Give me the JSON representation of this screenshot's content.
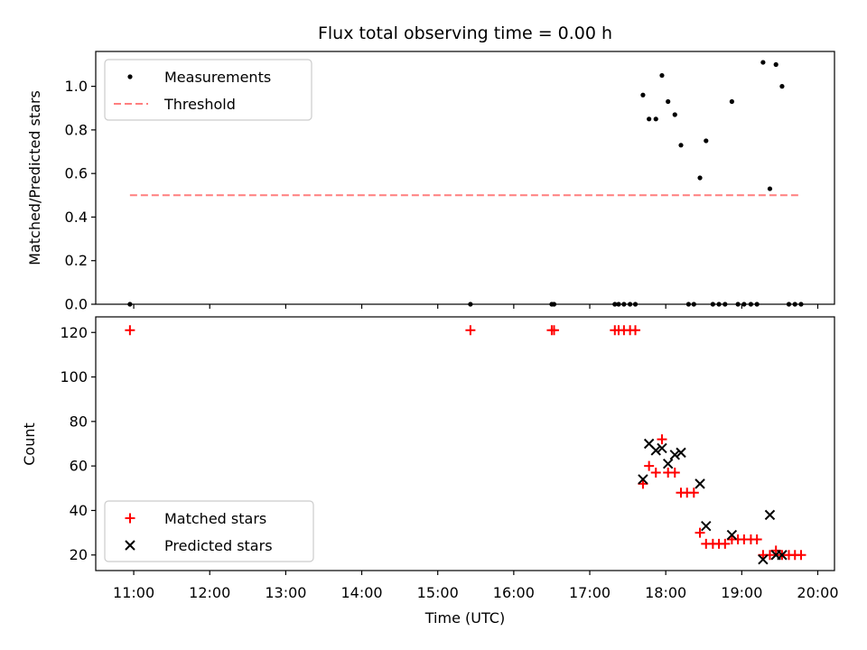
{
  "chart_data": [
    {
      "type": "scatter",
      "title": "Flux total observing time = 0.00 h",
      "xlabel": "",
      "ylabel": "Matched/Predicted stars",
      "xlim": [
        10.5,
        20.22
      ],
      "ylim": [
        0.0,
        1.16
      ],
      "yticks": [
        0.0,
        0.2,
        0.4,
        0.6,
        0.8,
        1.0
      ],
      "grid": false,
      "legend": "top-left",
      "series": [
        {
          "name": "Measurements",
          "marker": "dot",
          "color": "#000000",
          "points": [
            [
              10.95,
              0.0
            ],
            [
              15.43,
              0.0
            ],
            [
              16.5,
              0.0
            ],
            [
              16.53,
              0.0
            ],
            [
              17.33,
              0.0
            ],
            [
              17.38,
              0.0
            ],
            [
              17.45,
              0.0
            ],
            [
              17.53,
              0.0
            ],
            [
              17.6,
              0.0
            ],
            [
              17.7,
              0.96
            ],
            [
              17.78,
              0.85
            ],
            [
              17.87,
              0.85
            ],
            [
              17.95,
              1.05
            ],
            [
              18.03,
              0.93
            ],
            [
              18.12,
              0.87
            ],
            [
              18.2,
              0.73
            ],
            [
              18.3,
              0.0
            ],
            [
              18.37,
              0.0
            ],
            [
              18.45,
              0.58
            ],
            [
              18.53,
              0.75
            ],
            [
              18.62,
              0.0
            ],
            [
              18.7,
              0.0
            ],
            [
              18.78,
              0.0
            ],
            [
              18.87,
              0.93
            ],
            [
              18.95,
              0.0
            ],
            [
              19.03,
              0.0
            ],
            [
              19.12,
              0.0
            ],
            [
              19.2,
              0.0
            ],
            [
              19.28,
              1.11
            ],
            [
              19.37,
              0.53
            ],
            [
              19.45,
              1.1
            ],
            [
              19.53,
              1.0
            ],
            [
              19.62,
              0.0
            ],
            [
              19.7,
              0.0
            ],
            [
              19.78,
              0.0
            ]
          ]
        },
        {
          "name": "Threshold",
          "marker": "dashed-line",
          "color": "#ff7f7f",
          "points": [
            [
              10.95,
              0.5
            ],
            [
              19.78,
              0.5
            ]
          ]
        }
      ]
    },
    {
      "type": "scatter",
      "title": "",
      "xlabel": "Time (UTC)",
      "ylabel": "Count",
      "xlim": [
        10.5,
        20.22
      ],
      "ylim": [
        13,
        127
      ],
      "xticks": [
        11,
        12,
        13,
        14,
        15,
        16,
        17,
        18,
        19,
        20
      ],
      "xtick_labels": [
        "11:00",
        "12:00",
        "13:00",
        "14:00",
        "15:00",
        "16:00",
        "17:00",
        "18:00",
        "19:00",
        "20:00"
      ],
      "yticks": [
        20,
        40,
        60,
        80,
        100,
        120
      ],
      "grid": false,
      "legend": "bottom-left",
      "series": [
        {
          "name": "Matched stars",
          "marker": "plus",
          "color": "#ff0000",
          "points": [
            [
              10.95,
              121
            ],
            [
              15.43,
              121
            ],
            [
              16.5,
              121
            ],
            [
              16.53,
              121
            ],
            [
              17.33,
              121
            ],
            [
              17.38,
              121
            ],
            [
              17.45,
              121
            ],
            [
              17.53,
              121
            ],
            [
              17.6,
              121
            ],
            [
              17.7,
              52
            ],
            [
              17.78,
              60
            ],
            [
              17.87,
              57
            ],
            [
              17.95,
              72
            ],
            [
              18.03,
              57
            ],
            [
              18.12,
              57
            ],
            [
              18.2,
              48
            ],
            [
              18.28,
              48
            ],
            [
              18.37,
              48
            ],
            [
              18.45,
              30
            ],
            [
              18.53,
              25
            ],
            [
              18.62,
              25
            ],
            [
              18.7,
              25
            ],
            [
              18.78,
              25
            ],
            [
              18.87,
              27
            ],
            [
              18.95,
              27
            ],
            [
              19.03,
              27
            ],
            [
              19.12,
              27
            ],
            [
              19.2,
              27
            ],
            [
              19.28,
              20
            ],
            [
              19.37,
              20
            ],
            [
              19.45,
              22
            ],
            [
              19.53,
              20
            ],
            [
              19.62,
              20
            ],
            [
              19.7,
              20
            ],
            [
              19.78,
              20
            ]
          ]
        },
        {
          "name": "Predicted stars",
          "marker": "x",
          "color": "#000000",
          "points": [
            [
              17.7,
              54
            ],
            [
              17.78,
              70
            ],
            [
              17.87,
              67
            ],
            [
              17.95,
              68
            ],
            [
              18.03,
              61
            ],
            [
              18.12,
              65
            ],
            [
              18.2,
              66
            ],
            [
              18.45,
              52
            ],
            [
              18.53,
              33
            ],
            [
              18.87,
              29
            ],
            [
              19.28,
              18
            ],
            [
              19.37,
              38
            ],
            [
              19.45,
              20
            ],
            [
              19.53,
              20
            ]
          ]
        }
      ]
    }
  ]
}
